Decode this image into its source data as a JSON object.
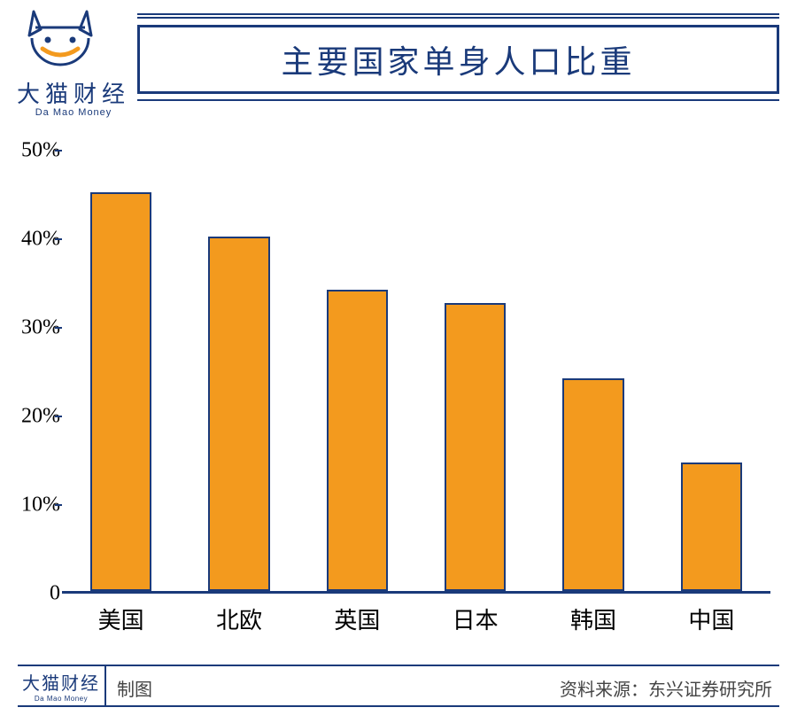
{
  "brand": {
    "name_cn": "大猫财经",
    "name_en": "Da  Mao  Money"
  },
  "chart": {
    "type": "bar",
    "title": "主要国家单身人口比重",
    "title_color": "#1a3a7a",
    "title_fontsize": 36,
    "categories": [
      "美国",
      "北欧",
      "英国",
      "日本",
      "韩国",
      "中国"
    ],
    "values": [
      45,
      40,
      34,
      32.5,
      24,
      14.5
    ],
    "y": {
      "min": 0,
      "max": 50,
      "ticks": [
        0,
        10,
        20,
        30,
        40,
        50
      ],
      "tick_labels": [
        "0",
        "10%",
        "20%",
        "30%",
        "40%",
        "50%"
      ],
      "label_fontsize": 24
    },
    "x_label_fontsize": 26,
    "bar_fill": "#f39a1e",
    "bar_border": "#1a3a7a",
    "bar_width_ratio": 0.52,
    "axis_color": "#1a3a7a",
    "background": "#ffffff"
  },
  "footer": {
    "brand_cn": "大猫财经",
    "brand_en": "Da Mao Money",
    "left_label": "制图",
    "source_label": "资料来源：",
    "source_value": "东兴证券研究所"
  }
}
